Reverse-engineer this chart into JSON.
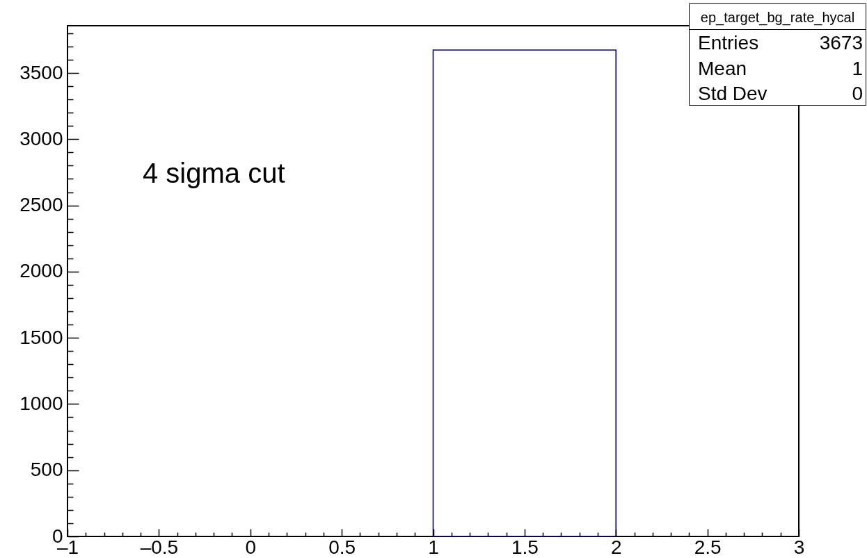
{
  "chart_data": {
    "type": "histogram",
    "bins": [
      1,
      2
    ],
    "values": [
      3673
    ],
    "color": "#000099",
    "xlim": [
      -1,
      3
    ],
    "xticks": [
      {
        "value": -1,
        "label": "–1"
      },
      {
        "value": -0.9,
        "label": null
      },
      {
        "value": -0.8,
        "label": null
      },
      {
        "value": -0.7,
        "label": null
      },
      {
        "value": -0.6,
        "label": null
      },
      {
        "value": -0.5,
        "label": "–0.5"
      },
      {
        "value": -0.4,
        "label": null
      },
      {
        "value": -0.3,
        "label": null
      },
      {
        "value": -0.2,
        "label": null
      },
      {
        "value": -0.1,
        "label": null
      },
      0,
      {
        "value": 0.1,
        "label": null
      },
      {
        "value": 0.2,
        "label": null
      },
      {
        "value": 0.3,
        "label": null
      },
      {
        "value": 0.4,
        "label": null
      },
      0.5,
      {
        "value": 0.6,
        "label": null
      },
      {
        "value": 0.7,
        "label": null
      },
      {
        "value": 0.8,
        "label": null
      },
      {
        "value": 0.9,
        "label": null
      },
      1,
      {
        "value": 1.1,
        "label": null
      },
      {
        "value": 1.2,
        "label": null
      },
      {
        "value": 1.3,
        "label": null
      },
      {
        "value": 1.4,
        "label": null
      },
      1.5,
      {
        "value": 1.6,
        "label": null
      },
      {
        "value": 1.7,
        "label": null
      },
      {
        "value": 1.8,
        "label": null
      },
      {
        "value": 1.9,
        "label": null
      },
      2,
      {
        "value": 2.1,
        "label": null
      },
      {
        "value": 2.2,
        "label": null
      },
      {
        "value": 2.3,
        "label": null
      },
      {
        "value": 2.4,
        "label": null
      },
      2.5,
      {
        "value": 2.6,
        "label": null
      },
      {
        "value": 2.7,
        "label": null
      },
      {
        "value": 2.8,
        "label": null
      },
      {
        "value": 2.9,
        "label": null
      },
      3
    ],
    "ylim": [
      0,
      3857
    ],
    "yticks": [
      0,
      {
        "value": 100,
        "label": null
      },
      {
        "value": 200,
        "label": null
      },
      {
        "value": 300,
        "label": null
      },
      {
        "value": 400,
        "label": null
      },
      500,
      {
        "value": 600,
        "label": null
      },
      {
        "value": 700,
        "label": null
      },
      {
        "value": 800,
        "label": null
      },
      {
        "value": 900,
        "label": null
      },
      1000,
      {
        "value": 1100,
        "label": null
      },
      {
        "value": 1200,
        "label": null
      },
      {
        "value": 1300,
        "label": null
      },
      {
        "value": 1400,
        "label": null
      },
      1500,
      {
        "value": 1600,
        "label": null
      },
      {
        "value": 1700,
        "label": null
      },
      {
        "value": 1800,
        "label": null
      },
      {
        "value": 1900,
        "label": null
      },
      2000,
      {
        "value": 2100,
        "label": null
      },
      {
        "value": 2200,
        "label": null
      },
      {
        "value": 2300,
        "label": null
      },
      {
        "value": 2400,
        "label": null
      },
      2500,
      {
        "value": 2600,
        "label": null
      },
      {
        "value": 2700,
        "label": null
      },
      {
        "value": 2800,
        "label": null
      },
      {
        "value": 2900,
        "label": null
      },
      3000,
      {
        "value": 3100,
        "label": null
      },
      {
        "value": 3200,
        "label": null
      },
      {
        "value": 3300,
        "label": null
      },
      {
        "value": 3400,
        "label": null
      },
      3500,
      {
        "value": 3600,
        "label": null
      },
      {
        "value": 3700,
        "label": null
      },
      {
        "value": 3800,
        "label": null
      }
    ],
    "annotations": [
      "4 sigma cut",
      "ep_target_bg_rate_hycal",
      "Entries",
      "3673",
      "Mean",
      "1",
      "Std Dev",
      "0"
    ]
  }
}
